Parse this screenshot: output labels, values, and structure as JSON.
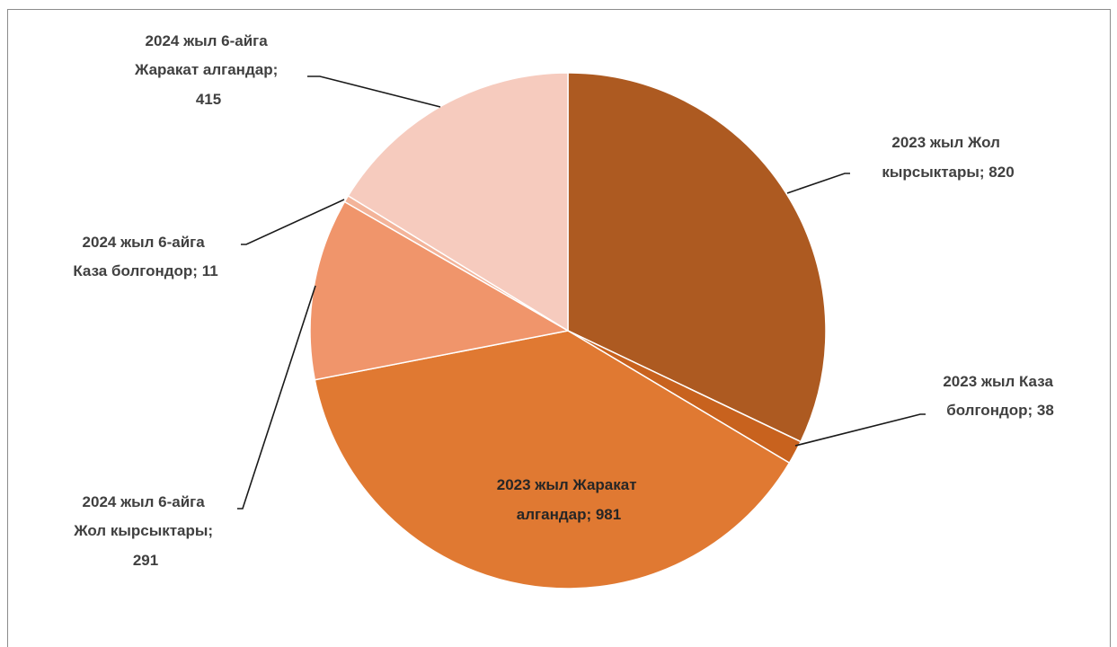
{
  "chart_data": {
    "type": "pie",
    "title": "",
    "slices": [
      {
        "label": "2023 жыл Жол кырсыктары",
        "value": 820,
        "color": "#AD5A21",
        "text_lines": [
          "2023 жыл Жол",
          "кырсыктары;  820"
        ]
      },
      {
        "label": "2023 жыл Каза болгондор",
        "value": 38,
        "color": "#C8621E",
        "text_lines": [
          "2023 жыл Каза",
          "болгондор; 38"
        ]
      },
      {
        "label": "2023 жыл Жаракат алгандар",
        "value": 981,
        "color": "#E07932",
        "text_lines": [
          "2023 жыл Жаракат",
          "алгандар; 981"
        ]
      },
      {
        "label": "2024 жыл 6-айга Жол кырсыктары",
        "value": 291,
        "color": "#F0956B",
        "text_lines": [
          "2024 жыл 6-айга",
          "Жол кырсыктары;",
          "291"
        ]
      },
      {
        "label": "2024 жыл 6-айга Каза болгондор",
        "value": 11,
        "color": "#F3B49A",
        "text_lines": [
          "2024 жыл 6-айга",
          "Каза болгондор;  11"
        ]
      },
      {
        "label": "2024 жыл 6-айга Жаракат алгандар",
        "value": 415,
        "color": "#F6CBBE",
        "text_lines": [
          "2024 жыл 6-айга",
          "Жаракат  алгандар;",
          "415"
        ]
      }
    ],
    "legend": "none",
    "data_labels": "outside-with-leader-lines"
  }
}
